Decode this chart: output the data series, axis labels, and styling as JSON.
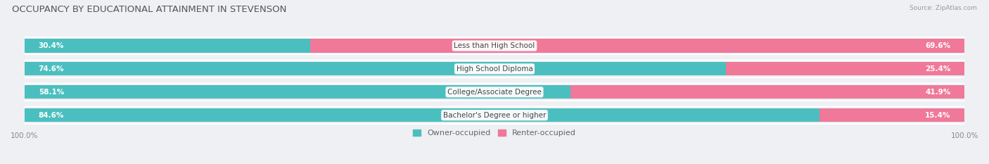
{
  "title": "OCCUPANCY BY EDUCATIONAL ATTAINMENT IN STEVENSON",
  "source": "Source: ZipAtlas.com",
  "categories": [
    "Less than High School",
    "High School Diploma",
    "College/Associate Degree",
    "Bachelor's Degree or higher"
  ],
  "owner_values": [
    30.4,
    74.6,
    58.1,
    84.6
  ],
  "renter_values": [
    69.6,
    25.4,
    41.9,
    15.4
  ],
  "owner_color": "#4bbfbf",
  "renter_color": "#f07899",
  "bg_color": "#eef0f4",
  "bar_bg_color": "#dde0e8",
  "bar_height": 0.58,
  "title_fontsize": 9.5,
  "label_fontsize": 7.5,
  "tick_fontsize": 7.5,
  "legend_fontsize": 8,
  "row_bg_color": "#e8eaef"
}
